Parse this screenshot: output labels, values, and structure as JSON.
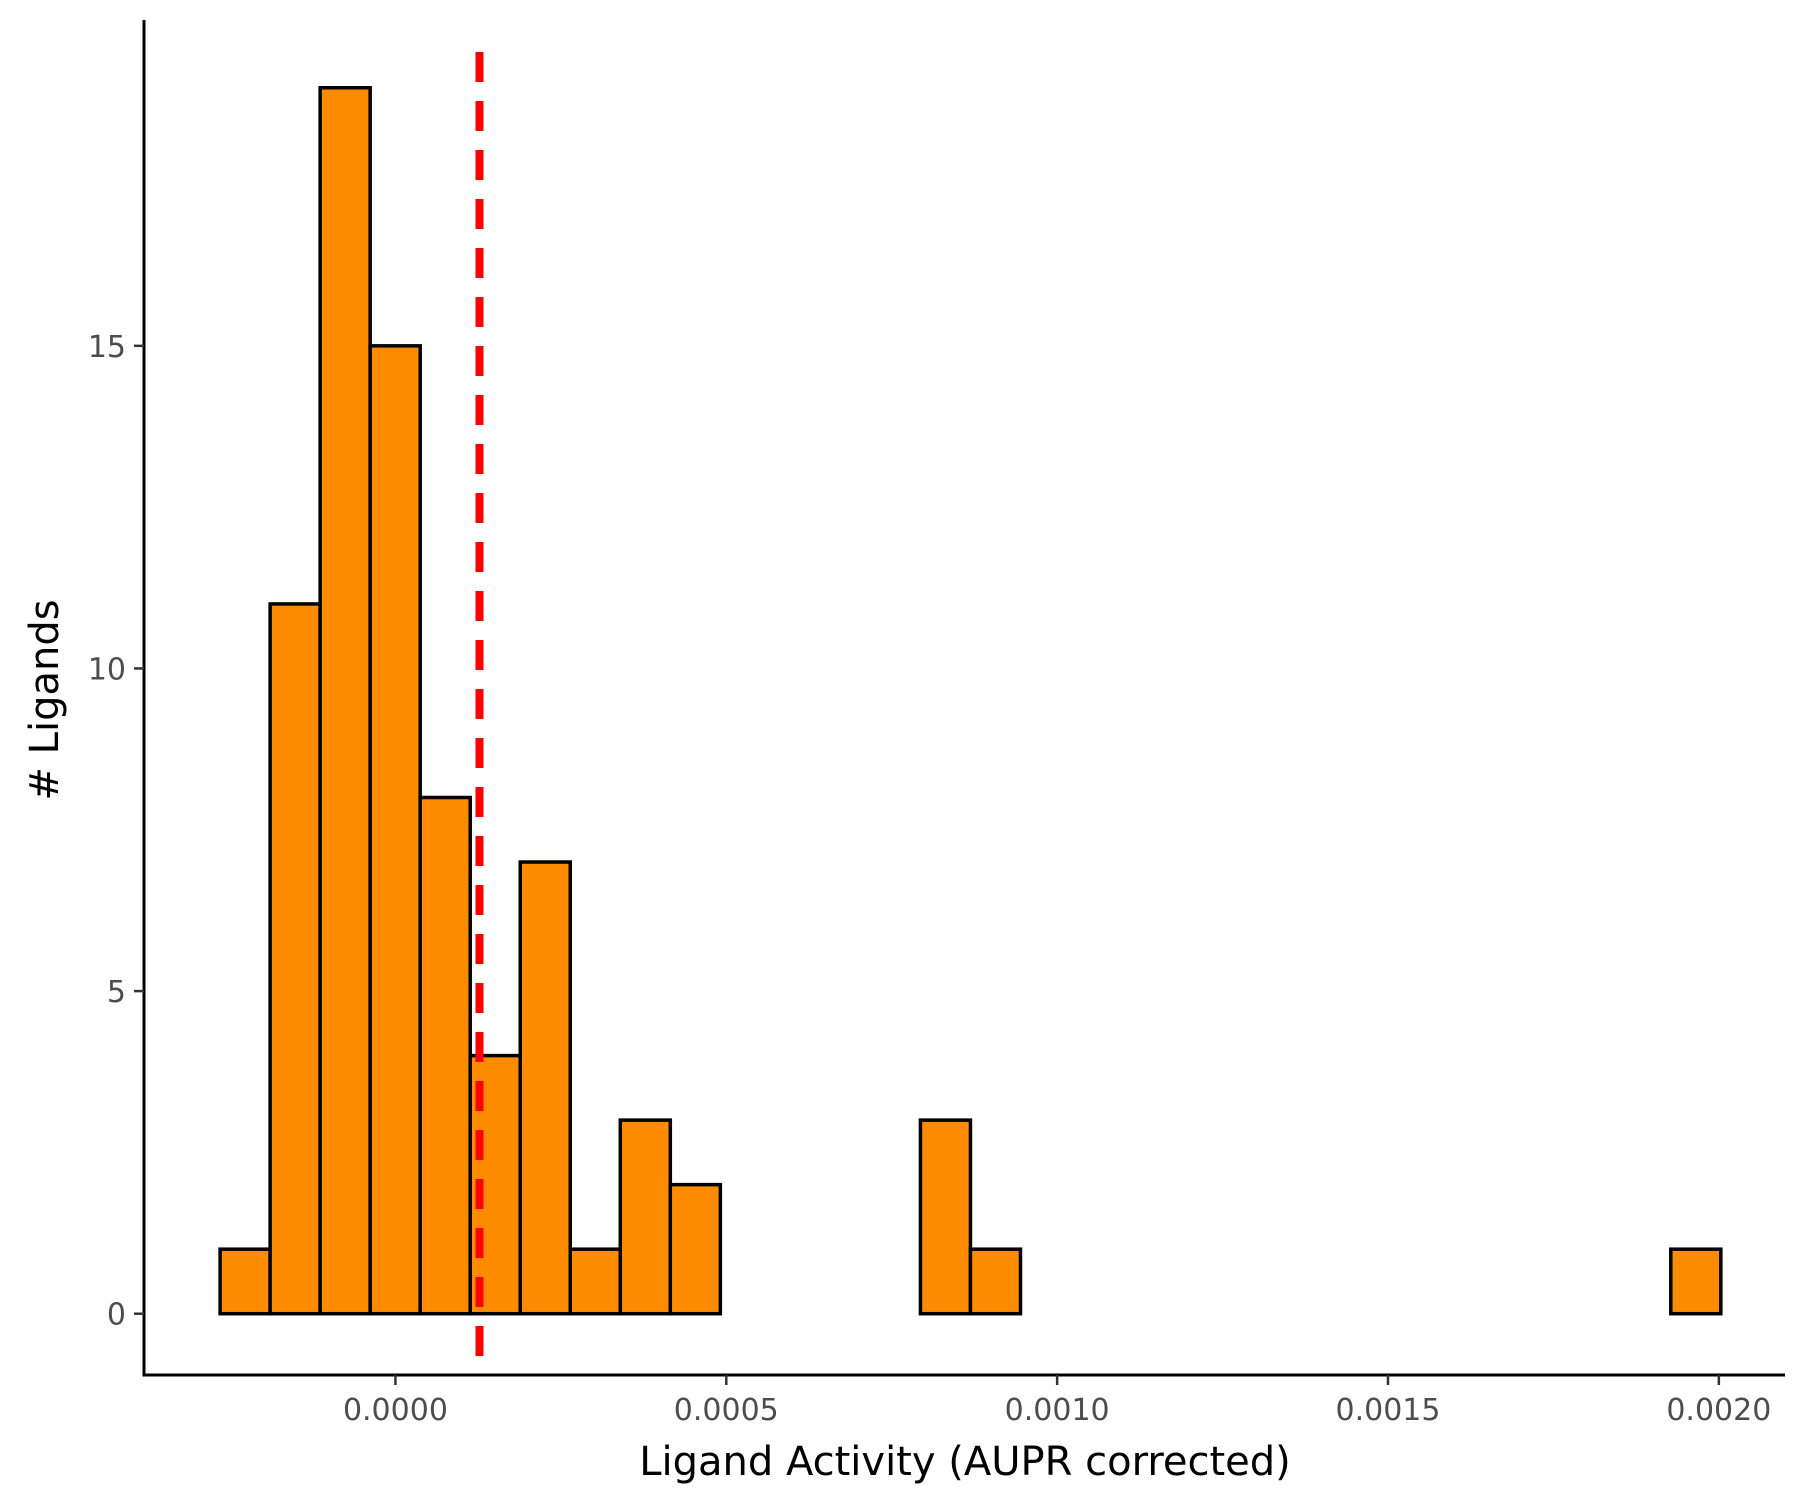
{
  "chart_data": {
    "type": "bar",
    "subtype": "histogram",
    "title": "",
    "xlabel": "Ligand Activity (AUPR corrected)",
    "ylabel": "# Ligands",
    "xlim": [
      -0.00038,
      0.0021
    ],
    "ylim": [
      -0.95,
      20.05
    ],
    "x_ticks": [
      {
        "value": 0.0,
        "label": "0.0000"
      },
      {
        "value": 0.0005,
        "label": "0.0005"
      },
      {
        "value": 0.001,
        "label": "0.0010"
      },
      {
        "value": 0.0015,
        "label": "0.0015"
      },
      {
        "value": 0.002,
        "label": "0.0020"
      }
    ],
    "y_ticks": [
      {
        "value": 0,
        "label": "0"
      },
      {
        "value": 5,
        "label": "5"
      },
      {
        "value": 10,
        "label": "10"
      },
      {
        "value": 15,
        "label": "15"
      }
    ],
    "bin_start": -0.000265,
    "bin_width": 7.56e-05,
    "counts": [
      1,
      11,
      19,
      15,
      8,
      4,
      7,
      1,
      3,
      2,
      0,
      0,
      0,
      0,
      3,
      1,
      0,
      0,
      0,
      0,
      0,
      0,
      0,
      0,
      0,
      0,
      0,
      0,
      0,
      1
    ],
    "bar_color": "#FF8C00",
    "edge_color": "#000000",
    "threshold_line": {
      "x": 0.000127,
      "color": "#FF0000",
      "style": "dashed"
    },
    "grid": false,
    "legend": "none"
  }
}
